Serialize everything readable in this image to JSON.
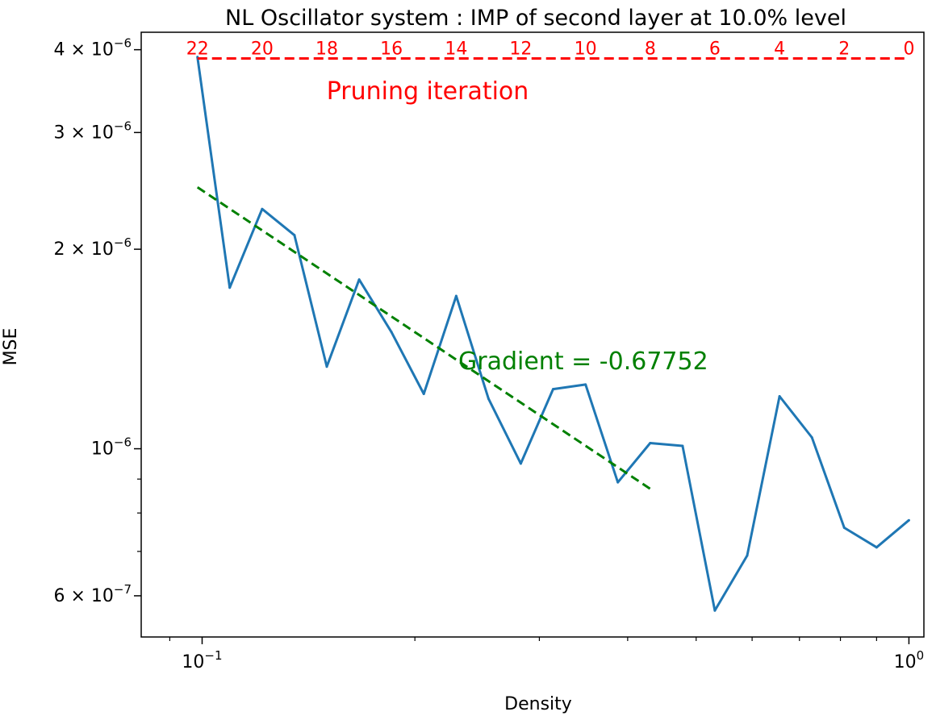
{
  "chart_data": {
    "type": "line",
    "title": "NL Oscillator system : IMP of second layer at 10.0% level",
    "xlabel": "Density",
    "ylabel": "MSE",
    "x_scale": "log",
    "y_scale": "log",
    "xlim": [
      0.082,
      1.05
    ],
    "ylim": [
      5.2e-07,
      4.25e-06
    ],
    "x_ticks": [
      {
        "value": 0.1,
        "base": "10",
        "exp": "−1"
      },
      {
        "value": 1.0,
        "base": "10",
        "exp": "0"
      }
    ],
    "y_ticks": [
      {
        "value": 4e-06,
        "coef": "4",
        "exp": "−6"
      },
      {
        "value": 3e-06,
        "coef": "3",
        "exp": "−6"
      },
      {
        "value": 2e-06,
        "coef": "2",
        "exp": "−6"
      },
      {
        "value": 1e-06,
        "coef": "",
        "exp": "−6"
      },
      {
        "value": 6e-07,
        "coef": "6",
        "exp": "−7"
      }
    ],
    "series": [
      {
        "color": "#1f77b4",
        "x": [
          0.0985,
          0.1094,
          0.1216,
          0.1351,
          0.1501,
          0.1668,
          0.1853,
          0.2059,
          0.2288,
          0.2542,
          0.2824,
          0.3138,
          0.3487,
          0.3874,
          0.4305,
          0.4783,
          0.5314,
          0.5905,
          0.6561,
          0.729,
          0.81,
          0.9,
          1.0
        ],
        "y": [
          3.9e-06,
          1.75e-06,
          2.3e-06,
          2.1e-06,
          1.33e-06,
          1.8e-06,
          1.5e-06,
          1.21e-06,
          1.7e-06,
          1.19e-06,
          9.5e-07,
          1.23e-06,
          1.25e-06,
          8.9e-07,
          1.02e-06,
          1.01e-06,
          5.7e-07,
          6.9e-07,
          1.2e-06,
          1.04e-06,
          7.6e-07,
          7.1e-07,
          7.8e-07
        ]
      }
    ],
    "fit_line": {
      "color": "#008000",
      "style": "dashed",
      "x": [
        0.0985,
        0.4305
      ],
      "y": [
        2.48e-06,
        8.7e-07
      ],
      "label": "Gradient = -0.67752"
    },
    "pruning_line": {
      "color": "#ff0000",
      "style": "dashed",
      "y": 3.88e-06,
      "x_range": [
        0.0985,
        1.0
      ],
      "label": "Pruning iteration",
      "iteration_labels": [
        {
          "text": "22",
          "x": 0.0985
        },
        {
          "text": "20",
          "x": 0.1216
        },
        {
          "text": "18",
          "x": 0.1501
        },
        {
          "text": "16",
          "x": 0.1853
        },
        {
          "text": "14",
          "x": 0.2288
        },
        {
          "text": "12",
          "x": 0.2824
        },
        {
          "text": "10",
          "x": 0.3487
        },
        {
          "text": "8",
          "x": 0.4305
        },
        {
          "text": "6",
          "x": 0.5314
        },
        {
          "text": "4",
          "x": 0.6561
        },
        {
          "text": "2",
          "x": 0.81
        },
        {
          "text": "0",
          "x": 1.0
        }
      ]
    },
    "grid": false,
    "legend": "none"
  }
}
